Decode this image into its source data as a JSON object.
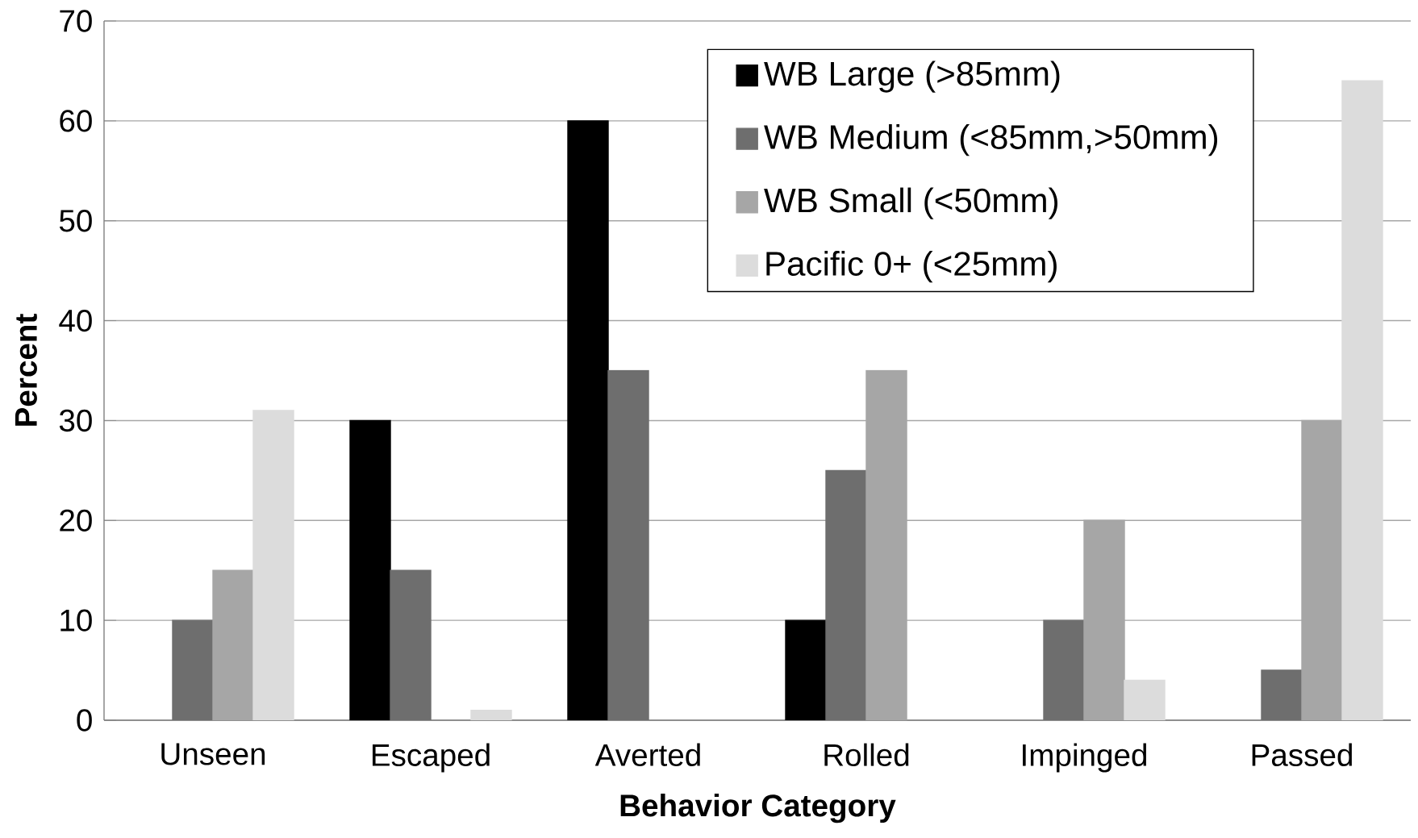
{
  "chart_data": {
    "type": "bar",
    "xlabel": "Behavior Category",
    "ylabel": "Percent",
    "categories": [
      "Unseen",
      "Escaped",
      "Averted",
      "Rolled",
      "Impinged",
      "Passed"
    ],
    "series": [
      {
        "name": "WB Large (>85mm)",
        "color": "#000000",
        "values": [
          0,
          30,
          60,
          10,
          0,
          0
        ]
      },
      {
        "name": "WB Medium (<85mm,>50mm)",
        "color": "#6e6e6e",
        "values": [
          10,
          15,
          35,
          25,
          10,
          5
        ]
      },
      {
        "name": "WB Small (<50mm)",
        "color": "#a6a6a6",
        "values": [
          15,
          0,
          0,
          35,
          20,
          30
        ]
      },
      {
        "name": "Pacific 0+ (<25mm)",
        "color": "#dcdcdc",
        "values": [
          31,
          1,
          0,
          0,
          4,
          64
        ]
      }
    ],
    "ylim": [
      0,
      70
    ],
    "yticks": [
      0,
      10,
      20,
      30,
      40,
      50,
      60,
      70
    ],
    "grid": "y",
    "legend": "top right"
  }
}
